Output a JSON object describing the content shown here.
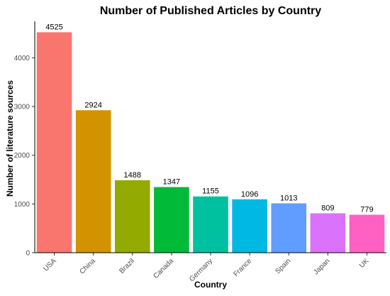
{
  "chart_data": {
    "type": "bar",
    "title": "Number of Published Articles by Country",
    "xlabel": "Country",
    "ylabel": "Number of literature sources",
    "categories": [
      "USA",
      "China",
      "Brazil",
      "Canada",
      "Germany",
      "France",
      "Spain",
      "Japan",
      "UK"
    ],
    "values": [
      4525,
      2924,
      1488,
      1347,
      1155,
      1096,
      1013,
      809,
      779
    ],
    "data_labels": [
      "4525",
      "2924",
      "1488",
      "1347",
      "1155",
      "1096",
      "1013",
      "809",
      "779"
    ],
    "colors": [
      "#F8766D",
      "#D39200",
      "#93AA00",
      "#00BA38",
      "#00C19F",
      "#00B9E3",
      "#619CFF",
      "#DB72FB",
      "#FF61C3"
    ],
    "yticks": [
      0,
      1000,
      2000,
      3000,
      4000
    ],
    "ylim": [
      0,
      4750
    ],
    "grid": false,
    "legend": "none"
  }
}
